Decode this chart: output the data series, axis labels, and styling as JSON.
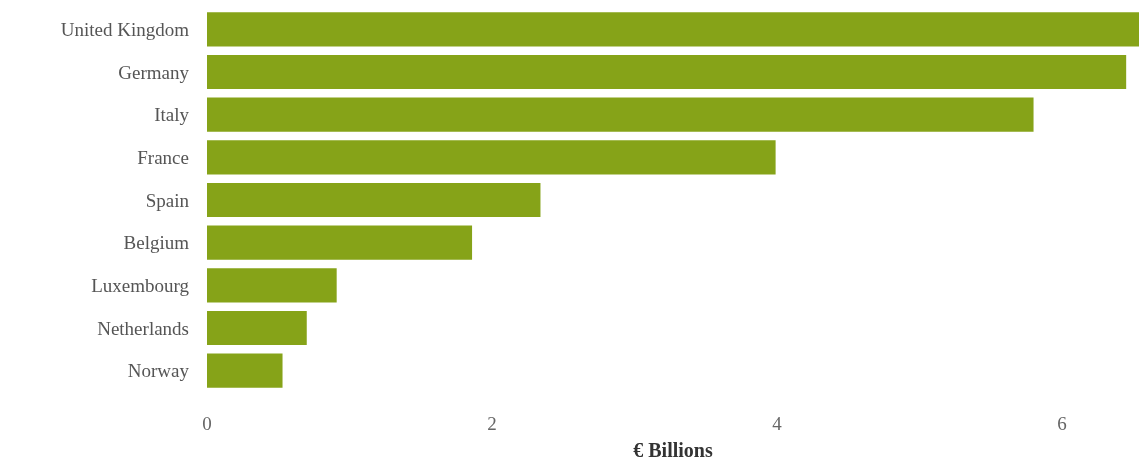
{
  "chart_data": {
    "type": "bar",
    "orientation": "horizontal",
    "xlabel": "€ Billions",
    "categories": [
      "United Kingdom",
      "Germany",
      "Italy",
      "France",
      "Spain",
      "Belgium",
      "Luxembourg",
      "Netherlands",
      "Norway"
    ],
    "values": [
      6.54,
      6.45,
      5.8,
      3.99,
      2.34,
      1.86,
      0.91,
      0.7,
      0.53
    ],
    "color": "#86a318",
    "xlim": [
      0,
      6.54
    ],
    "xticks": [
      0,
      2,
      4,
      6
    ],
    "grid": false
  }
}
